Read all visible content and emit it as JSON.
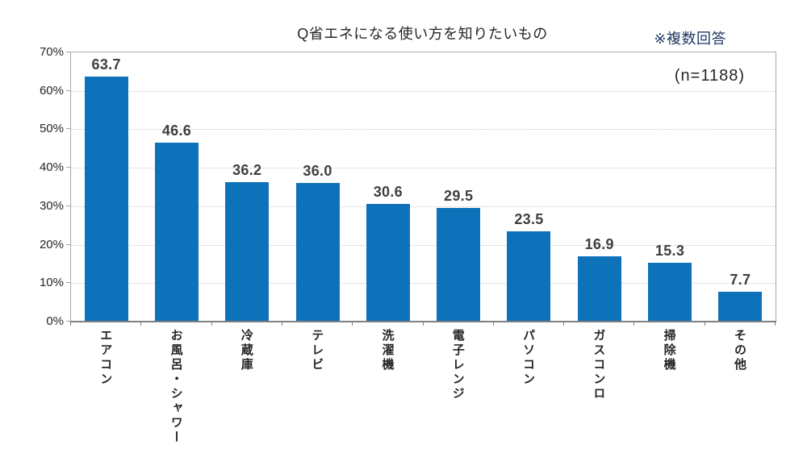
{
  "chart_data": {
    "type": "bar",
    "title": "Q省エネになる使い方を知りたいもの",
    "note": "※複数回答",
    "sample_label": "(n=1188)",
    "categories": [
      "エアコン",
      "お風呂・シャワー",
      "冷蔵庫",
      "テレビ",
      "洗濯機",
      "電子レンジ",
      "パソコン",
      "ガスコンロ",
      "掃除機",
      "その他"
    ],
    "values": [
      63.7,
      46.6,
      36.2,
      36.0,
      30.6,
      29.5,
      23.5,
      16.9,
      15.3,
      7.7
    ],
    "ylim": [
      0,
      70
    ],
    "yticks": [
      0,
      10,
      20,
      30,
      40,
      50,
      60,
      70
    ],
    "ytick_labels": [
      "0%",
      "10%",
      "20%",
      "30%",
      "40%",
      "50%",
      "60%",
      "70%"
    ],
    "grid": true,
    "legend": "none",
    "value_label_decimals": 1,
    "colors": {
      "bar": "#0E72BA",
      "value_label": "#3F3F3F",
      "axis_text": "#262626",
      "note_text": "#1F3864",
      "gridline": "#C9C9C9",
      "plot_border": "#A6A6A6",
      "baseline": "#7F7F7F",
      "background": "#FFFFFF"
    }
  }
}
